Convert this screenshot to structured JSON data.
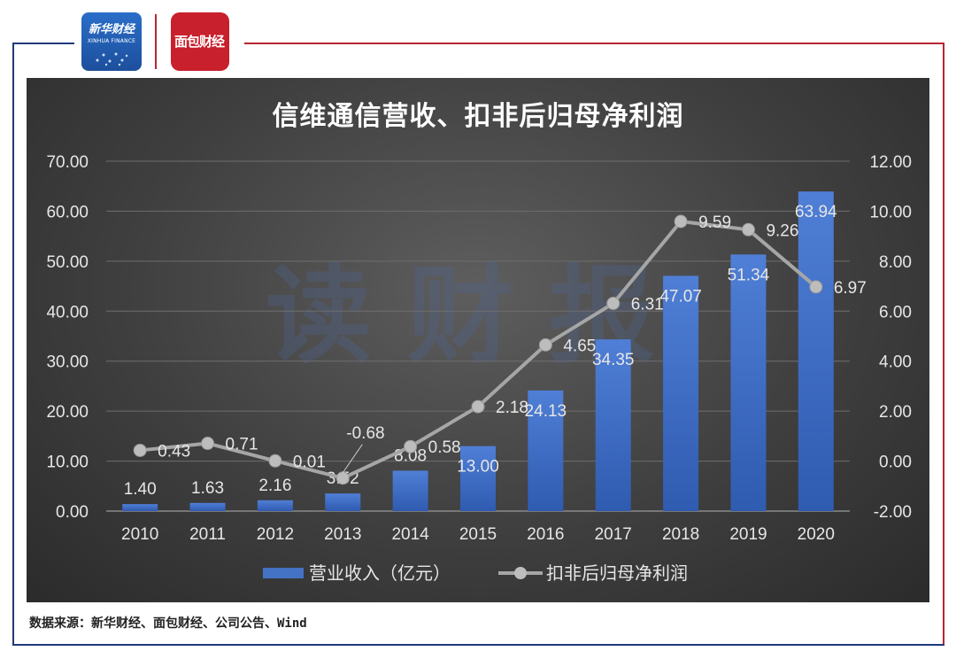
{
  "header": {
    "logo_xinhua_title": "新华财经",
    "logo_xinhua_subtitle": "XINHUA FINANCE",
    "logo_mianbao_text": "面包财经"
  },
  "watermark": "读财报",
  "source_note": "数据来源：新华财经、面包财经、公司公告、Wind",
  "colors": {
    "panel": "#3a3a3a",
    "bar": "#4472c4",
    "line": "#a6a6a6",
    "frame_blue": "#1f3a7a",
    "frame_red": "#b82630"
  },
  "chart_data": {
    "type": "bar",
    "title": "信维通信营收、扣非后归母净利润",
    "categories": [
      "2010",
      "2011",
      "2012",
      "2013",
      "2014",
      "2015",
      "2016",
      "2017",
      "2018",
      "2019",
      "2020"
    ],
    "series": [
      {
        "name": "营业收入（亿元）",
        "type": "bar",
        "axis": "left",
        "values": [
          1.4,
          1.63,
          2.16,
          3.52,
          8.08,
          13.0,
          24.13,
          34.35,
          47.07,
          51.34,
          63.94
        ],
        "labels": [
          "1.40",
          "1.63",
          "2.16",
          "3.52",
          "8.08",
          "13.00",
          "24.13",
          "34.35",
          "47.07",
          "51.34",
          "63.94"
        ]
      },
      {
        "name": "扣非后归母净利润",
        "type": "line",
        "axis": "right",
        "values": [
          0.43,
          0.71,
          0.01,
          -0.68,
          0.58,
          2.18,
          4.65,
          6.31,
          9.59,
          9.26,
          6.97
        ],
        "labels": [
          "0.43",
          "0.71",
          "0.01",
          "-0.68",
          "0.58",
          "2.18",
          "4.65",
          "6.31",
          "9.59",
          "9.26",
          "6.97"
        ]
      }
    ],
    "left_axis": {
      "ylim": [
        0,
        70
      ],
      "ticks": [
        "0.00",
        "10.00",
        "20.00",
        "30.00",
        "40.00",
        "50.00",
        "60.00",
        "70.00"
      ]
    },
    "right_axis": {
      "ylim": [
        -2,
        12
      ],
      "ticks": [
        "-2.00",
        "0.00",
        "2.00",
        "4.00",
        "6.00",
        "8.00",
        "10.00",
        "12.00"
      ]
    },
    "grid": true,
    "legend": "bottom"
  }
}
